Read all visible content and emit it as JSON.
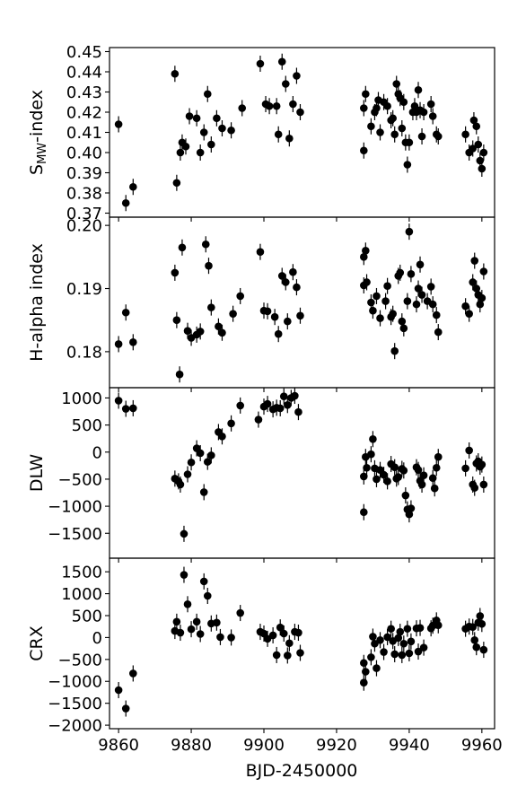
{
  "chart_data": [
    {
      "type": "scatter",
      "ylabel": "S_MW-index",
      "ylabel_main": "S",
      "ylabel_sub": "MW",
      "ylabel_rest": "-index",
      "ylim": [
        0.368,
        0.452
      ],
      "yticks": [
        0.37,
        0.38,
        0.39,
        0.4,
        0.41,
        0.42,
        0.43,
        0.44,
        0.45
      ],
      "ytick_labels": [
        "0.37",
        "0.38",
        "0.39",
        "0.40",
        "0.41",
        "0.42",
        "0.43",
        "0.44",
        "0.45"
      ],
      "points": [
        [
          9860.0,
          0.414
        ],
        [
          9862.0,
          0.375
        ],
        [
          9864.0,
          0.383
        ],
        [
          9875.5,
          0.439
        ],
        [
          9876.0,
          0.385
        ],
        [
          9877.0,
          0.4
        ],
        [
          9877.5,
          0.405
        ],
        [
          9878.5,
          0.403
        ],
        [
          9879.5,
          0.418
        ],
        [
          9881.5,
          0.417
        ],
        [
          9882.5,
          0.4
        ],
        [
          9883.5,
          0.41
        ],
        [
          9884.5,
          0.429
        ],
        [
          9885.5,
          0.404
        ],
        [
          9887.0,
          0.417
        ],
        [
          9888.5,
          0.412
        ],
        [
          9891.0,
          0.411
        ],
        [
          9894.0,
          0.422
        ],
        [
          9899.0,
          0.444
        ],
        [
          9900.5,
          0.424
        ],
        [
          9901.5,
          0.423
        ],
        [
          9903.5,
          0.423
        ],
        [
          9904.0,
          0.409
        ],
        [
          9905.0,
          0.445
        ],
        [
          9906.0,
          0.434
        ],
        [
          9907.0,
          0.407
        ],
        [
          9908.0,
          0.424
        ],
        [
          9909.0,
          0.438
        ],
        [
          9910.0,
          0.42
        ],
        [
          9927.5,
          0.401
        ],
        [
          9927.5,
          0.422
        ],
        [
          9928.0,
          0.429
        ],
        [
          9929.5,
          0.413
        ],
        [
          9930.5,
          0.42
        ],
        [
          9931.0,
          0.422
        ],
        [
          9931.5,
          0.426
        ],
        [
          9932.0,
          0.41
        ],
        [
          9933.0,
          0.425
        ],
        [
          9934.0,
          0.423
        ],
        [
          9935.0,
          0.416
        ],
        [
          9935.5,
          0.417
        ],
        [
          9936.0,
          0.409
        ],
        [
          9936.5,
          0.434
        ],
        [
          9937.0,
          0.429
        ],
        [
          9937.5,
          0.427
        ],
        [
          9938.0,
          0.412
        ],
        [
          9938.5,
          0.425
        ],
        [
          9939.0,
          0.405
        ],
        [
          9939.5,
          0.394
        ],
        [
          9940.0,
          0.405
        ],
        [
          9941.0,
          0.42
        ],
        [
          9941.5,
          0.423
        ],
        [
          9942.0,
          0.42
        ],
        [
          9942.5,
          0.431
        ],
        [
          9943.0,
          0.421
        ],
        [
          9943.5,
          0.408
        ],
        [
          9944.0,
          0.42
        ],
        [
          9946.0,
          0.424
        ],
        [
          9946.5,
          0.418
        ],
        [
          9947.5,
          0.409
        ],
        [
          9948.0,
          0.408
        ],
        [
          9955.5,
          0.409
        ],
        [
          9956.5,
          0.4
        ],
        [
          9957.5,
          0.402
        ],
        [
          9957.8,
          0.416
        ],
        [
          9958.5,
          0.413
        ],
        [
          9959.0,
          0.404
        ],
        [
          9959.5,
          0.396
        ],
        [
          9960.0,
          0.392
        ],
        [
          9960.5,
          0.4
        ]
      ]
    },
    {
      "type": "scatter",
      "ylabel": "H-alpha index",
      "ylim": [
        0.1743,
        0.2013
      ],
      "yticks": [
        0.18,
        0.19,
        0.2
      ],
      "ytick_labels": [
        "0.18",
        "0.19",
        "0.20"
      ],
      "points": [
        [
          9860.0,
          0.1812
        ],
        [
          9862.0,
          0.1862
        ],
        [
          9864.0,
          0.1815
        ],
        [
          9875.5,
          0.1925
        ],
        [
          9876.0,
          0.185
        ],
        [
          9876.8,
          0.1764
        ],
        [
          9877.5,
          0.1965
        ],
        [
          9879.0,
          0.1833
        ],
        [
          9880.0,
          0.1822
        ],
        [
          9881.5,
          0.1827
        ],
        [
          9882.5,
          0.1832
        ],
        [
          9884.0,
          0.197
        ],
        [
          9884.8,
          0.1936
        ],
        [
          9885.5,
          0.187
        ],
        [
          9887.5,
          0.184
        ],
        [
          9888.5,
          0.183
        ],
        [
          9891.5,
          0.186
        ],
        [
          9893.5,
          0.1888
        ],
        [
          9899.0,
          0.1958
        ],
        [
          9900.0,
          0.1865
        ],
        [
          9901.0,
          0.1864
        ],
        [
          9903.0,
          0.1855
        ],
        [
          9904.0,
          0.1828
        ],
        [
          9905.0,
          0.192
        ],
        [
          9906.0,
          0.191
        ],
        [
          9906.5,
          0.1848
        ],
        [
          9908.0,
          0.1926
        ],
        [
          9909.0,
          0.1902
        ],
        [
          9910.0,
          0.1857
        ],
        [
          9927.5,
          0.195
        ],
        [
          9927.5,
          0.1905
        ],
        [
          9928.0,
          0.196
        ],
        [
          9928.3,
          0.191
        ],
        [
          9929.5,
          0.1878
        ],
        [
          9930.0,
          0.1865
        ],
        [
          9931.0,
          0.1888
        ],
        [
          9932.0,
          0.1853
        ],
        [
          9933.5,
          0.188
        ],
        [
          9934.0,
          0.1904
        ],
        [
          9935.0,
          0.1855
        ],
        [
          9935.5,
          0.186
        ],
        [
          9936.0,
          0.1801
        ],
        [
          9937.0,
          0.192
        ],
        [
          9937.5,
          0.1925
        ],
        [
          9938.0,
          0.1848
        ],
        [
          9938.5,
          0.1837
        ],
        [
          9939.5,
          0.188
        ],
        [
          9940.0,
          0.199
        ],
        [
          9940.5,
          0.1923
        ],
        [
          9942.0,
          0.1875
        ],
        [
          9942.5,
          0.19
        ],
        [
          9943.0,
          0.1938
        ],
        [
          9943.5,
          0.189
        ],
        [
          9945.0,
          0.188
        ],
        [
          9946.0,
          0.1903
        ],
        [
          9946.5,
          0.1875
        ],
        [
          9947.5,
          0.1858
        ],
        [
          9948.0,
          0.1831
        ],
        [
          9955.5,
          0.1872
        ],
        [
          9956.5,
          0.186
        ],
        [
          9957.5,
          0.191
        ],
        [
          9958.0,
          0.1944
        ],
        [
          9958.5,
          0.19
        ],
        [
          9959.0,
          0.189
        ],
        [
          9959.5,
          0.1875
        ],
        [
          9960.0,
          0.1885
        ],
        [
          9960.5,
          0.1927
        ]
      ]
    },
    {
      "type": "scatter",
      "ylabel": "DLW",
      "ylim": [
        -1960,
        1190
      ],
      "yticks": [
        -1500,
        -1000,
        -500,
        0,
        500,
        1000
      ],
      "ytick_labels": [
        "−1500",
        "−1000",
        "−500",
        "0",
        "500",
        "1000"
      ],
      "points": [
        [
          9860.0,
          950
        ],
        [
          9862.0,
          800
        ],
        [
          9864.0,
          810
        ],
        [
          9875.5,
          -490
        ],
        [
          9876.5,
          -540
        ],
        [
          9877.0,
          -600
        ],
        [
          9878.0,
          -1510
        ],
        [
          9879.0,
          -410
        ],
        [
          9880.0,
          -190
        ],
        [
          9881.5,
          70
        ],
        [
          9882.5,
          -20
        ],
        [
          9883.5,
          -740
        ],
        [
          9884.5,
          -180
        ],
        [
          9885.5,
          -60
        ],
        [
          9887.5,
          370
        ],
        [
          9888.5,
          290
        ],
        [
          9891.0,
          530
        ],
        [
          9893.5,
          860
        ],
        [
          9898.5,
          600
        ],
        [
          9900.0,
          840
        ],
        [
          9901.0,
          890
        ],
        [
          9902.5,
          790
        ],
        [
          9903.5,
          820
        ],
        [
          9904.5,
          810
        ],
        [
          9905.5,
          1030
        ],
        [
          9906.5,
          870
        ],
        [
          9907.5,
          1000
        ],
        [
          9908.5,
          1040
        ],
        [
          9909.5,
          740
        ],
        [
          9927.5,
          -1110
        ],
        [
          9927.5,
          -450
        ],
        [
          9928.0,
          -90
        ],
        [
          9928.3,
          -290
        ],
        [
          9929.5,
          -40
        ],
        [
          9930.0,
          240
        ],
        [
          9930.5,
          -300
        ],
        [
          9931.0,
          -500
        ],
        [
          9932.0,
          -330
        ],
        [
          9933.0,
          -420
        ],
        [
          9934.0,
          -540
        ],
        [
          9935.0,
          -220
        ],
        [
          9936.0,
          -280
        ],
        [
          9936.5,
          -490
        ],
        [
          9937.0,
          -460
        ],
        [
          9938.0,
          -310
        ],
        [
          9938.5,
          -340
        ],
        [
          9939.0,
          -800
        ],
        [
          9939.5,
          -1060
        ],
        [
          9940.0,
          -1150
        ],
        [
          9940.5,
          -1040
        ],
        [
          9942.0,
          -280
        ],
        [
          9942.5,
          -330
        ],
        [
          9943.0,
          -530
        ],
        [
          9943.5,
          -600
        ],
        [
          9944.0,
          -430
        ],
        [
          9946.5,
          -480
        ],
        [
          9947.0,
          -670
        ],
        [
          9947.5,
          -290
        ],
        [
          9948.0,
          -90
        ],
        [
          9955.5,
          -300
        ],
        [
          9956.5,
          30
        ],
        [
          9957.5,
          -600
        ],
        [
          9958.0,
          -660
        ],
        [
          9958.5,
          -210
        ],
        [
          9959.0,
          -170
        ],
        [
          9959.5,
          -270
        ],
        [
          9960.0,
          -230
        ],
        [
          9960.5,
          -600
        ]
      ]
    },
    {
      "type": "scatter",
      "ylabel": "CRX",
      "xlabel": "BJD-2450000",
      "ylim": [
        -2080,
        1810
      ],
      "yticks": [
        -2000,
        -1500,
        -1000,
        -500,
        0,
        500,
        1000,
        1500
      ],
      "ytick_labels": [
        "−2000",
        "−1500",
        "−1000",
        "−500",
        "0",
        "500",
        "1000",
        "1500"
      ],
      "xlim": [
        9857.5,
        9963.5
      ],
      "xticks": [
        9860,
        9880,
        9900,
        9920,
        9940,
        9960
      ],
      "xtick_labels": [
        "9860",
        "9880",
        "9900",
        "9920",
        "9940",
        "9960"
      ],
      "points": [
        [
          9860.0,
          -1200
        ],
        [
          9862.0,
          -1620
        ],
        [
          9864.0,
          -820
        ],
        [
          9875.5,
          150
        ],
        [
          9876.0,
          360
        ],
        [
          9877.0,
          110
        ],
        [
          9878.0,
          1430
        ],
        [
          9879.0,
          760
        ],
        [
          9880.0,
          190
        ],
        [
          9881.5,
          360
        ],
        [
          9882.5,
          80
        ],
        [
          9883.5,
          1280
        ],
        [
          9884.5,
          950
        ],
        [
          9885.5,
          320
        ],
        [
          9887.0,
          340
        ],
        [
          9888.0,
          10
        ],
        [
          9891.0,
          0
        ],
        [
          9893.5,
          560
        ],
        [
          9899.0,
          130
        ],
        [
          9900.0,
          90
        ],
        [
          9901.0,
          -30
        ],
        [
          9902.5,
          50
        ],
        [
          9903.5,
          -400
        ],
        [
          9904.5,
          230
        ],
        [
          9905.5,
          90
        ],
        [
          9906.5,
          -410
        ],
        [
          9907.0,
          -130
        ],
        [
          9908.5,
          130
        ],
        [
          9909.5,
          110
        ],
        [
          9910.0,
          -350
        ],
        [
          9927.5,
          -1030
        ],
        [
          9927.5,
          -580
        ],
        [
          9928.0,
          -780
        ],
        [
          9929.5,
          -450
        ],
        [
          9930.0,
          20
        ],
        [
          9930.5,
          -140
        ],
        [
          9931.0,
          -700
        ],
        [
          9932.0,
          -60
        ],
        [
          9933.0,
          -330
        ],
        [
          9934.0,
          10
        ],
        [
          9935.0,
          200
        ],
        [
          9935.5,
          -80
        ],
        [
          9936.0,
          -380
        ],
        [
          9937.0,
          -10
        ],
        [
          9937.5,
          130
        ],
        [
          9938.0,
          -400
        ],
        [
          9938.5,
          -140
        ],
        [
          9939.5,
          200
        ],
        [
          9940.0,
          -360
        ],
        [
          9940.5,
          -90
        ],
        [
          9942.0,
          210
        ],
        [
          9942.5,
          -320
        ],
        [
          9943.0,
          220
        ],
        [
          9944.0,
          -230
        ],
        [
          9946.0,
          210
        ],
        [
          9946.5,
          270
        ],
        [
          9947.5,
          390
        ],
        [
          9948.0,
          280
        ],
        [
          9955.5,
          200
        ],
        [
          9956.5,
          250
        ],
        [
          9957.5,
          240
        ],
        [
          9958.0,
          -60
        ],
        [
          9958.5,
          -220
        ],
        [
          9959.0,
          340
        ],
        [
          9959.5,
          490
        ],
        [
          9960.0,
          310
        ],
        [
          9960.5,
          -280
        ]
      ]
    }
  ]
}
